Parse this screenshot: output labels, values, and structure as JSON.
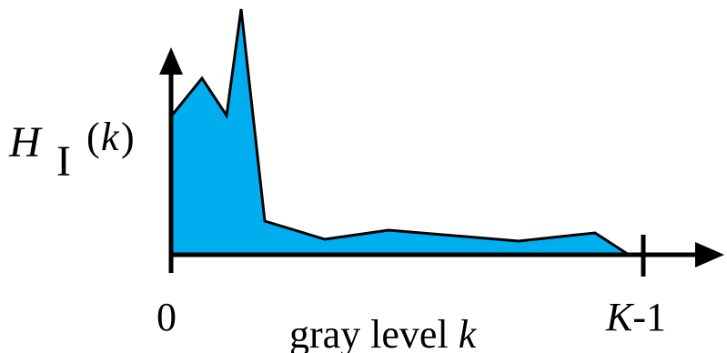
{
  "figure": {
    "y_label": {
      "symbol": "H",
      "subscript": "I",
      "argument_open": "(",
      "argument_var": "k",
      "argument_close": ")"
    },
    "x_label": {
      "text": "gray level ",
      "var": "k"
    },
    "x_origin_label": "0",
    "x_end_label": {
      "var": "K",
      "suffix": "-1"
    },
    "colors": {
      "fill": "#00AEEF",
      "stroke": "#000000"
    }
  }
}
